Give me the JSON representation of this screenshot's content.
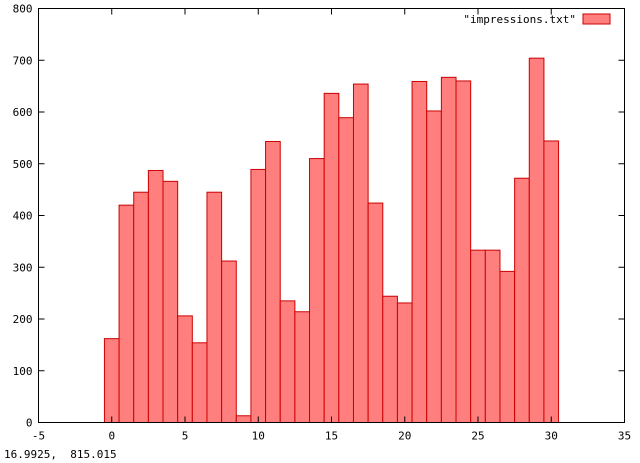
{
  "chart_data": {
    "type": "bar",
    "x": [
      0,
      1,
      2,
      3,
      4,
      5,
      6,
      7,
      8,
      9,
      10,
      11,
      12,
      13,
      14,
      15,
      16,
      17,
      18,
      19,
      20,
      21,
      22,
      23,
      24,
      25,
      26,
      27,
      28,
      29,
      30
    ],
    "series": [
      {
        "name": "\"impressions.txt\"",
        "values": [
          162,
          420,
          445,
          487,
          466,
          206,
          154,
          445,
          312,
          13,
          489,
          543,
          235,
          214,
          510,
          636,
          589,
          654,
          424,
          244,
          231,
          659,
          602,
          667,
          660,
          333,
          333,
          292,
          472,
          704,
          544
        ]
      }
    ],
    "bar_width": 1,
    "xlim": [
      -5,
      35
    ],
    "ylim": [
      0,
      800
    ],
    "x_ticks": [
      "-5",
      "0",
      "5",
      "10",
      "15",
      "20",
      "25",
      "30",
      "35"
    ],
    "y_ticks": [
      "0",
      "100",
      "200",
      "300",
      "400",
      "500",
      "600",
      "700",
      "800"
    ],
    "xlabel": "",
    "ylabel": "",
    "title": "",
    "legend_position": "top-right",
    "grid": false,
    "colors": {
      "fill": "#ff7f7f",
      "stroke": "#cc0000",
      "axis": "#000000"
    }
  },
  "status": {
    "coordinates": "16.9925,  815.015"
  }
}
